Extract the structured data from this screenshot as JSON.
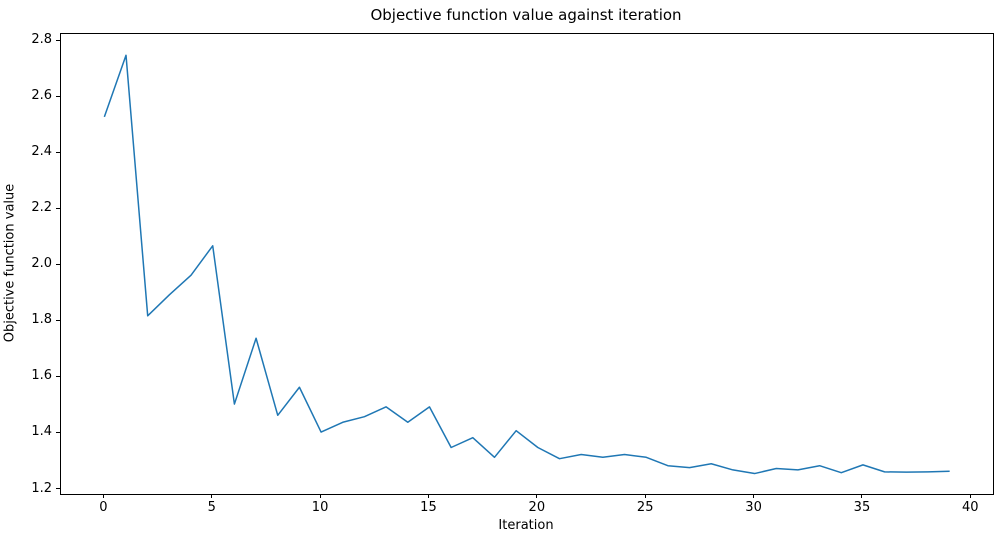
{
  "figure": {
    "background": "#ffffff",
    "text_color": "#000000"
  },
  "chart_data": {
    "type": "line",
    "title": "Objective function value against iteration",
    "xlabel": "Iteration",
    "ylabel": "Objective function value",
    "legend": null,
    "grid": false,
    "line_color": "#1f77b4",
    "line_width": 1.5,
    "xlim": [
      -2.0,
      41.0
    ],
    "ylim": [
      1.184,
      2.826
    ],
    "xticks": [
      0,
      5,
      10,
      15,
      20,
      25,
      30,
      35,
      40
    ],
    "xtick_labels": [
      "0",
      "5",
      "10",
      "15",
      "20",
      "25",
      "30",
      "35",
      "40"
    ],
    "yticks": [
      1.2,
      1.4,
      1.6,
      1.8,
      2.0,
      2.2,
      2.4,
      2.6,
      2.8
    ],
    "ytick_labels": [
      "1.2",
      "1.4",
      "1.6",
      "1.8",
      "2.0",
      "2.2",
      "2.4",
      "2.6",
      "2.8"
    ],
    "x": [
      0,
      1,
      2,
      3,
      4,
      5,
      6,
      7,
      8,
      9,
      10,
      11,
      12,
      13,
      14,
      15,
      16,
      17,
      18,
      19,
      20,
      21,
      22,
      23,
      24,
      25,
      26,
      27,
      28,
      29,
      30,
      31,
      32,
      33,
      34,
      35,
      36,
      37,
      38,
      39
    ],
    "y": [
      2.53,
      2.75,
      1.82,
      1.895,
      1.965,
      2.07,
      1.505,
      1.74,
      1.465,
      1.565,
      1.405,
      1.44,
      1.46,
      1.495,
      1.44,
      1.495,
      1.35,
      1.385,
      1.315,
      1.41,
      1.35,
      1.31,
      1.325,
      1.315,
      1.325,
      1.315,
      1.285,
      1.278,
      1.292,
      1.27,
      1.257,
      1.275,
      1.27,
      1.285,
      1.26,
      1.288,
      1.263,
      1.262,
      1.263,
      1.265
    ]
  }
}
